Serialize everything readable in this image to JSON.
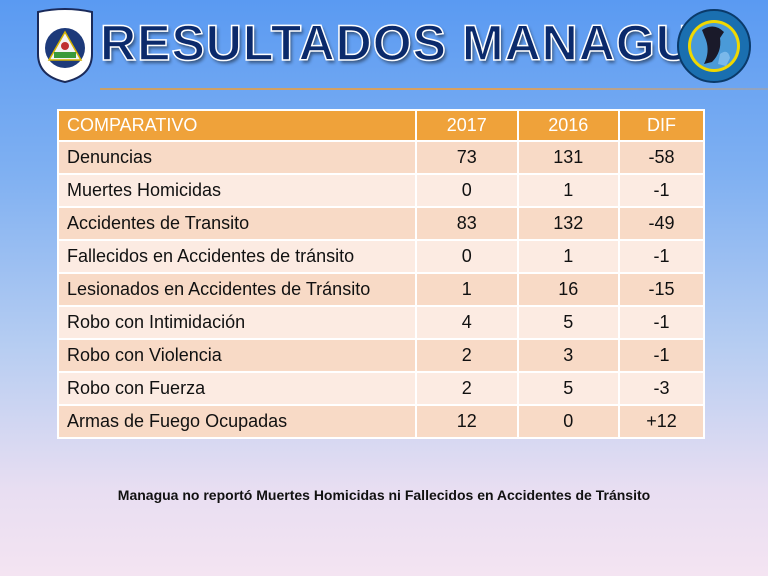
{
  "title": "RESULTADOS MANAGUA",
  "logos": {
    "left": "POLICIA NACIONAL NICARAGUA",
    "right": "En Seguridad y con Seguridad"
  },
  "table": {
    "headers": [
      "COMPARATIVO",
      "2017",
      "2016",
      "DIF"
    ],
    "rows": [
      [
        "Denuncias",
        "73",
        "131",
        "-58"
      ],
      [
        "Muertes Homicidas",
        "0",
        "1",
        "-1"
      ],
      [
        "Accidentes de Transito",
        "83",
        "132",
        "-49"
      ],
      [
        "Fallecidos en Accidentes de tránsito",
        "0",
        "1",
        "-1"
      ],
      [
        "Lesionados en Accidentes de Tránsito",
        "1",
        "16",
        "-15"
      ],
      [
        "Robo con Intimidación",
        "4",
        "5",
        "-1"
      ],
      [
        "Robo con Violencia",
        "2",
        "3",
        "-1"
      ],
      [
        "Robo con Fuerza",
        "2",
        "5",
        "-3"
      ],
      [
        "Armas de Fuego Ocupadas",
        "12",
        "0",
        "+12"
      ]
    ]
  },
  "note": "Managua no reportó Muertes Homicidas ni Fallecidos en Accidentes de Tránsito",
  "colors": {
    "header": "#efa23a",
    "title": "#0b2a6b"
  }
}
